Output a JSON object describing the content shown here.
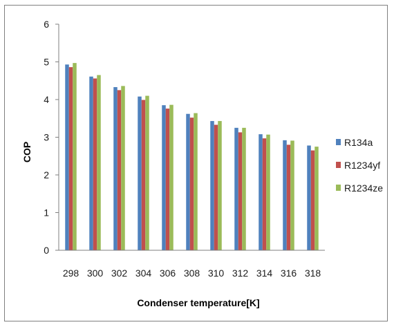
{
  "chart_data": {
    "type": "bar",
    "title": "",
    "xlabel": "Condenser temperature[K]",
    "ylabel": "COP",
    "ylim": [
      0,
      6
    ],
    "yticks": [
      "0",
      "1",
      "2",
      "3",
      "4",
      "5",
      "6"
    ],
    "grid": false,
    "legend": "right",
    "categories": [
      "298",
      "300",
      "302",
      "304",
      "306",
      "308",
      "310",
      "312",
      "314",
      "316",
      "318"
    ],
    "series": [
      {
        "name": "R134a",
        "color": "#4f81bd",
        "values": [
          4.93,
          4.61,
          4.33,
          4.08,
          3.85,
          3.62,
          3.43,
          3.25,
          3.08,
          2.92,
          2.78
        ]
      },
      {
        "name": "R1234yf",
        "color": "#c0504d",
        "values": [
          4.86,
          4.56,
          4.25,
          3.99,
          3.76,
          3.52,
          3.33,
          3.13,
          2.97,
          2.8,
          2.65
        ]
      },
      {
        "name": "R1234ze",
        "color": "#9bbb59",
        "values": [
          4.97,
          4.65,
          4.36,
          4.1,
          3.86,
          3.64,
          3.43,
          3.25,
          3.07,
          2.91,
          2.75
        ]
      }
    ]
  }
}
